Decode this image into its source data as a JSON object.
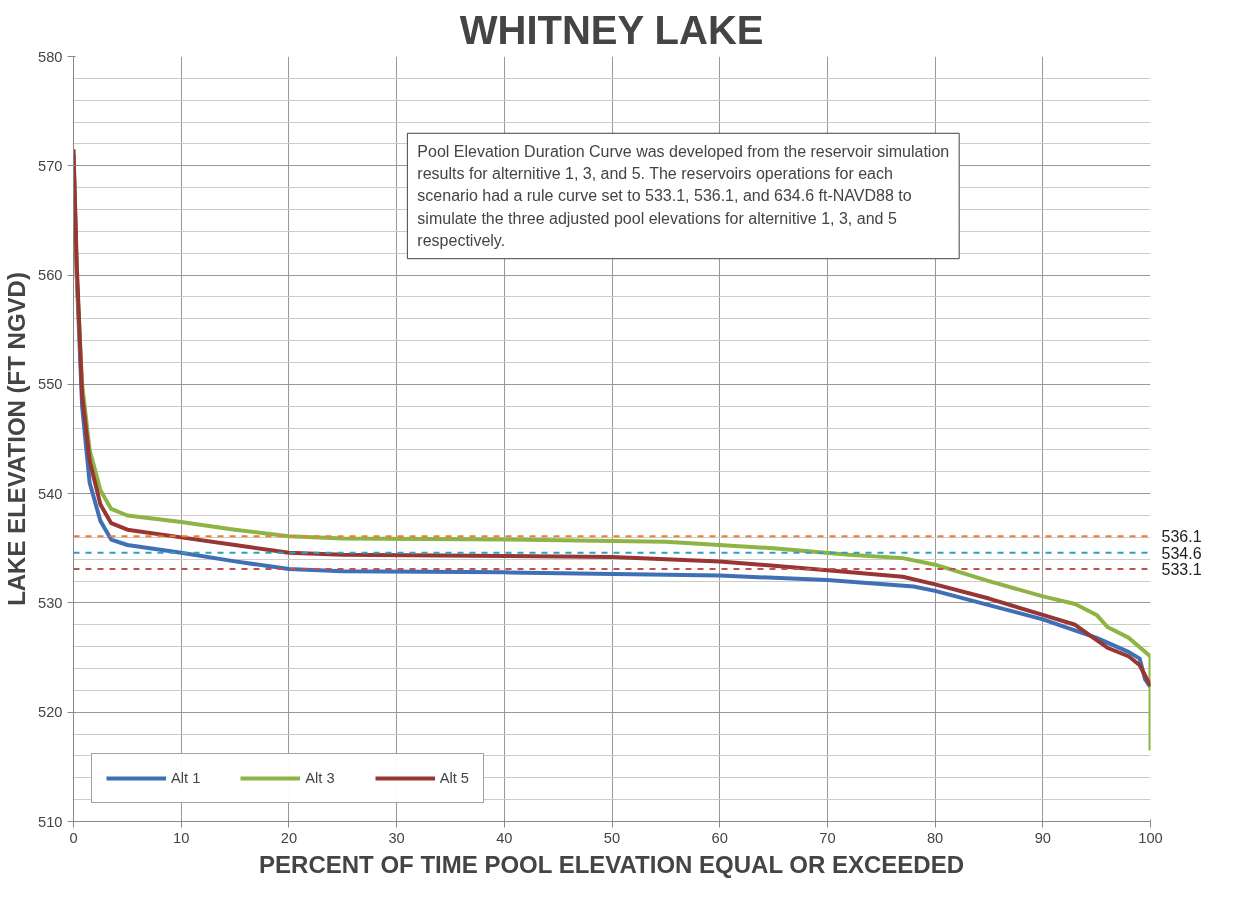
{
  "chart_data": {
    "type": "line",
    "title": "WHITNEY LAKE",
    "xlabel": "PERCENT OF TIME POOL ELEVATION EQUAL OR EXCEEDED",
    "ylabel": "LAKE ELEVATION (FT NGVD)",
    "xlim": [
      0,
      100
    ],
    "xticks": [
      0,
      10,
      20,
      30,
      40,
      50,
      60,
      70,
      80,
      90,
      100
    ],
    "ylim": [
      510,
      580
    ],
    "yticks": [
      510,
      520,
      530,
      540,
      550,
      560,
      570,
      580
    ],
    "grid": true,
    "legend": "bottom left",
    "line_style": "solid",
    "series": [
      {
        "name": "Alt 1",
        "color": "#3f6fb5",
        "x": [
          0,
          0.3,
          0.8,
          1.5,
          2.5,
          3.5,
          5,
          10,
          15,
          20,
          25,
          40,
          60,
          70,
          78,
          80,
          85,
          90,
          95,
          98,
          99,
          99.5,
          100
        ],
        "values": [
          571,
          560,
          548,
          541,
          537.5,
          535.8,
          535.3,
          534.6,
          533.8,
          533.1,
          532.9,
          532.8,
          532.5,
          532.1,
          531.5,
          531.1,
          529.8,
          528.5,
          526.8,
          525.5,
          524.9,
          523.0,
          522.3
        ]
      },
      {
        "name": "Alt 3",
        "color": "#8db444",
        "x": [
          0,
          0.3,
          0.8,
          1.5,
          2.5,
          3.5,
          5,
          10,
          15,
          20,
          25,
          40,
          55,
          65,
          72,
          77,
          80,
          85,
          90,
          93,
          95,
          96,
          98,
          100,
          100
        ],
        "values": [
          571,
          560,
          550,
          544,
          540.3,
          538.6,
          538.0,
          537.4,
          536.7,
          536.1,
          535.9,
          535.8,
          535.6,
          535.0,
          534.4,
          534.1,
          533.5,
          532.0,
          530.6,
          529.9,
          528.9,
          527.8,
          526.8,
          525.1,
          516.5
        ]
      },
      {
        "name": "Alt 5",
        "color": "#983634",
        "x": [
          0,
          0.3,
          0.8,
          1.5,
          2.5,
          3.5,
          5,
          10,
          15,
          20,
          25,
          40,
          50,
          60,
          70,
          77,
          80,
          85,
          90,
          93,
          95,
          96,
          98,
          99,
          100
        ],
        "values": [
          571.5,
          561,
          549,
          543,
          539,
          537.3,
          536.7,
          536.0,
          535.3,
          534.6,
          534.4,
          534.3,
          534.2,
          533.8,
          533.0,
          532.4,
          531.7,
          530.4,
          528.9,
          528.0,
          526.6,
          525.9,
          525.1,
          524.3,
          522.4
        ]
      }
    ],
    "ref_lines": [
      {
        "axis": "y",
        "value": 536.1,
        "label": "536.1",
        "color": "#ed7d31",
        "line_style": "dashed"
      },
      {
        "axis": "y",
        "value": 534.6,
        "label": "534.6",
        "color": "#2e9fbf",
        "line_style": "dashed"
      },
      {
        "axis": "y",
        "value": 533.1,
        "label": "533.1",
        "color": "#c0504d",
        "line_style": "dashed"
      }
    ],
    "annotations": [
      "Pool Elevation Duration Curve was developed from the reservoir simulation results for alternitive 1, 3, and 5.   The reservoirs operations for each scenario had a rule curve set to 533.1, 536.1, and 634.6 ft-NAVD88 to simulate the three adjusted pool elevations for alternitive 1, 3, and 5 respectively."
    ]
  }
}
